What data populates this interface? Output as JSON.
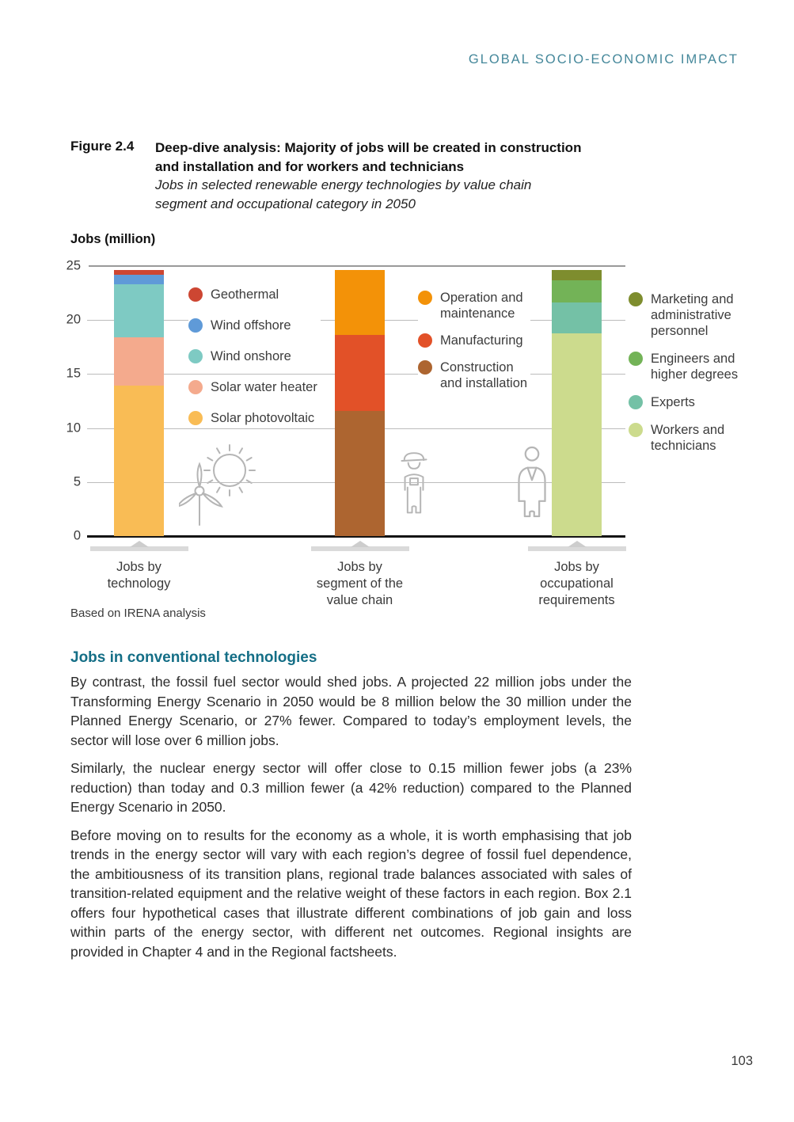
{
  "page": {
    "header": "GLOBAL SOCIO-ECONOMIC IMPACT",
    "page_number": "103"
  },
  "figure": {
    "label": "Figure 2.4",
    "title_lines": [
      "Deep-dive analysis: Majority of jobs will be created in construction",
      "and installation and for workers and technicians"
    ],
    "subtitle_lines": [
      "Jobs in selected renewable energy technologies by value chain",
      "segment and occupational category in 2050"
    ]
  },
  "chart_data": {
    "type": "bar",
    "stacked": true,
    "title": "Jobs (million)",
    "ylabel": "Jobs (million)",
    "unit": "million jobs",
    "ylim": [
      0,
      25
    ],
    "yticks": [
      0,
      5,
      10,
      15,
      20,
      25
    ],
    "grid": true,
    "source": "Based on IRENA analysis",
    "categories": [
      "Jobs by technology",
      "Jobs by segment of the value chain",
      "Jobs by occupational requirements"
    ],
    "icons": {
      "technology": "wind-turbine-sun-icon",
      "value_chain": "construction-worker-icon",
      "occupation": "office-worker-icon"
    },
    "bars": [
      {
        "category": "Jobs by technology",
        "category_lines": [
          "Jobs by",
          "technology"
        ],
        "total": 24.6,
        "segments": [
          {
            "name": "Solar photovoltaic",
            "value": 13.9,
            "color": "#f9bc55"
          },
          {
            "name": "Solar water heater",
            "value": 4.5,
            "color": "#f4aa8d"
          },
          {
            "name": "Wind onshore",
            "value": 4.9,
            "color": "#7ecac3"
          },
          {
            "name": "Wind offshore",
            "value": 0.9,
            "color": "#5f9ad8"
          },
          {
            "name": "Geothermal",
            "value": 0.4,
            "color": "#cd4632"
          }
        ]
      },
      {
        "category": "Jobs by segment of the value chain",
        "category_lines": [
          "Jobs by",
          "segment of the",
          "value chain"
        ],
        "total": 24.6,
        "segments": [
          {
            "name": "Construction and installation",
            "value": 11.6,
            "color": "#ad6530"
          },
          {
            "name": "Manufacturing",
            "value": 7.0,
            "color": "#e25128"
          },
          {
            "name": "Operation and maintenance",
            "value": 6.0,
            "color": "#f39208"
          }
        ]
      },
      {
        "category": "Jobs by occupational requirements",
        "category_lines": [
          "Jobs by",
          "occupational",
          "requirements"
        ],
        "total": 24.6,
        "segments": [
          {
            "name": "Workers and technicians",
            "value": 18.8,
            "color": "#ccdb8d"
          },
          {
            "name": "Experts",
            "value": 2.8,
            "color": "#74c1a6"
          },
          {
            "name": "Engineers and higher degrees",
            "value": 2.1,
            "color": "#73b357"
          },
          {
            "name": "Marketing and administrative personnel",
            "value": 0.9,
            "color": "#7e8d2e"
          }
        ]
      }
    ],
    "legends": [
      {
        "items": [
          {
            "label_lines": [
              "Geothermal"
            ],
            "color": "#cd4632"
          },
          {
            "label_lines": [
              "Wind offshore"
            ],
            "color": "#5f9ad8"
          },
          {
            "label_lines": [
              "Wind onshore"
            ],
            "color": "#7ecac3"
          },
          {
            "label_lines": [
              "Solar water heater"
            ],
            "color": "#f4aa8d"
          },
          {
            "label_lines": [
              "Solar photovoltaic"
            ],
            "color": "#f9bc55"
          }
        ]
      },
      {
        "items": [
          {
            "label_lines": [
              "Operation and",
              "maintenance"
            ],
            "color": "#f39208"
          },
          {
            "label_lines": [
              "Manufacturing"
            ],
            "color": "#e25128"
          },
          {
            "label_lines": [
              "Construction",
              "and installation"
            ],
            "color": "#ad6530"
          }
        ]
      },
      {
        "items": [
          {
            "label_lines": [
              "Marketing and",
              "administrative",
              "personnel"
            ],
            "color": "#7e8d2e"
          },
          {
            "label_lines": [
              "Engineers and",
              "higher degrees"
            ],
            "color": "#73b357"
          },
          {
            "label_lines": [
              "Experts"
            ],
            "color": "#74c1a6"
          },
          {
            "label_lines": [
              "Workers and",
              "technicians"
            ],
            "color": "#ccdb8d"
          }
        ]
      }
    ]
  },
  "body": {
    "heading": "Jobs in conventional technologies",
    "paragraphs": [
      "By contrast, the fossil fuel sector would shed jobs.  A projected 22 million jobs under the Transforming Energy Scenario in 2050 would be 8 million below the 30 million under the Planned Energy Scenario, or 27% fewer. Compared to today’s employment levels, the sector will lose over 6 million jobs.",
      "Similarly, the nuclear energy sector will offer close to 0.15 million fewer jobs (a 23% reduction) than today and 0.3 million fewer (a 42% reduction) compared to the Planned Energy Scenario in 2050.",
      "Before moving on to results for the economy as a whole, it is worth emphasising that job trends in the energy sector will vary with each region’s degree of fossil fuel dependence, the ambitiousness of its transition plans, regional trade balances associated with sales of transition-related equipment and the relative weight of these factors in each region. Box 2.1 offers four hypothetical cases that illustrate different combinations of job gain and loss within parts of the energy sector, with different net outcomes. Regional insights are provided in Chapter 4 and in the Regional factsheets."
    ]
  }
}
